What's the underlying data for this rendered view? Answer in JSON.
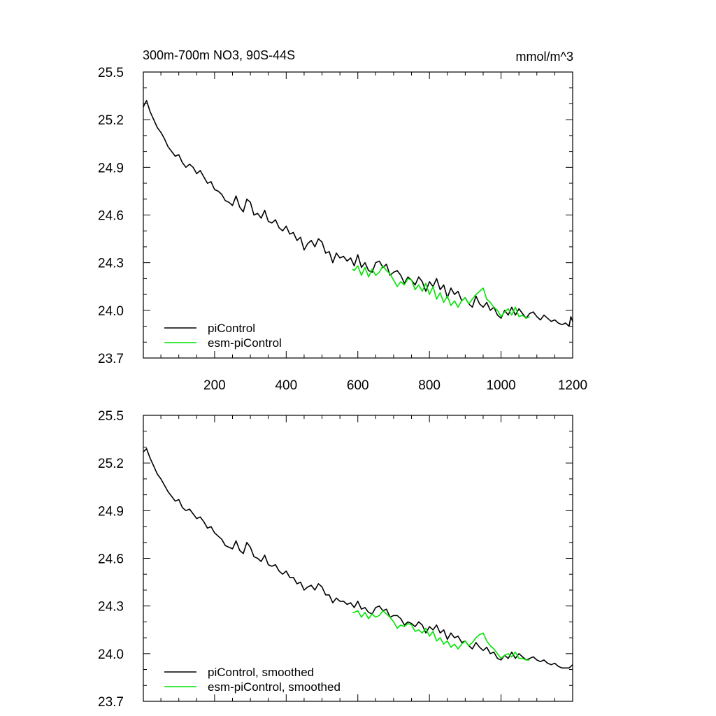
{
  "colors": {
    "picontrol": "#000000",
    "esm_picontrol": "#00e400",
    "axis": "#000000"
  },
  "chart_data": [
    {
      "type": "line",
      "title_left": "300m-700m NO3, 90S-44S",
      "title_right": "mmol/m^3",
      "xlabel": "",
      "ylabel": "",
      "xlim": [
        1,
        1200
      ],
      "ylim": [
        23.7,
        25.5
      ],
      "xticks": [
        200,
        400,
        600,
        800,
        1000,
        1200
      ],
      "xtick_labels": [
        "200",
        "400",
        "600",
        "800",
        "1000",
        "1200"
      ],
      "yticks": [
        23.7,
        24.0,
        24.3,
        24.6,
        24.9,
        25.2,
        25.5
      ],
      "ytick_labels": [
        "23.7",
        "24.0",
        "24.3",
        "24.6",
        "24.9",
        "25.2",
        "25.5"
      ],
      "legend_position": "bottom-left",
      "series": [
        {
          "name": "piControl",
          "color_key": "picontrol",
          "x": [
            1,
            5,
            10,
            20,
            30,
            40,
            50,
            60,
            70,
            80,
            90,
            100,
            110,
            120,
            130,
            140,
            150,
            160,
            170,
            180,
            190,
            200,
            210,
            220,
            230,
            240,
            250,
            260,
            270,
            280,
            290,
            300,
            310,
            320,
            330,
            340,
            350,
            360,
            370,
            380,
            390,
            400,
            410,
            420,
            430,
            440,
            450,
            460,
            470,
            480,
            490,
            500,
            510,
            520,
            530,
            540,
            550,
            560,
            570,
            580,
            590,
            600,
            610,
            620,
            630,
            640,
            650,
            660,
            670,
            680,
            690,
            700,
            710,
            720,
            730,
            740,
            750,
            760,
            770,
            780,
            790,
            800,
            810,
            820,
            830,
            840,
            850,
            860,
            870,
            880,
            890,
            900,
            910,
            920,
            930,
            940,
            950,
            960,
            970,
            980,
            990,
            1000,
            1010,
            1020,
            1030,
            1040,
            1050,
            1060,
            1070,
            1080,
            1090,
            1100,
            1110,
            1120,
            1130,
            1140,
            1150,
            1160,
            1170,
            1180,
            1190,
            1195,
            1200
          ],
          "y": [
            25.28,
            25.3,
            25.32,
            25.25,
            25.2,
            25.15,
            25.12,
            25.08,
            25.03,
            25.0,
            24.97,
            24.98,
            24.93,
            24.9,
            24.92,
            24.9,
            24.86,
            24.88,
            24.84,
            24.8,
            24.81,
            24.76,
            24.75,
            24.73,
            24.69,
            24.68,
            24.66,
            24.72,
            24.65,
            24.62,
            24.7,
            24.68,
            24.6,
            24.61,
            24.58,
            24.63,
            24.56,
            24.55,
            24.57,
            24.52,
            24.5,
            24.53,
            24.48,
            24.49,
            24.44,
            24.46,
            24.38,
            24.42,
            24.44,
            24.4,
            24.45,
            24.43,
            24.36,
            24.37,
            24.3,
            24.36,
            24.33,
            24.34,
            24.31,
            24.33,
            24.28,
            24.35,
            24.27,
            24.3,
            24.25,
            24.24,
            24.3,
            24.31,
            24.27,
            24.29,
            24.22,
            24.24,
            24.25,
            24.22,
            24.17,
            24.21,
            24.19,
            24.16,
            24.21,
            24.18,
            24.12,
            24.18,
            24.15,
            24.2,
            24.13,
            24.16,
            24.08,
            24.14,
            24.1,
            24.12,
            24.06,
            24.08,
            24.04,
            24.02,
            24.09,
            24.04,
            24.02,
            24.05,
            24.0,
            24.02,
            23.97,
            23.95,
            24.0,
            23.97,
            24.02,
            23.97,
            24.01,
            23.98,
            23.95,
            23.98,
            23.99,
            23.96,
            23.94,
            23.97,
            23.95,
            23.93,
            23.94,
            23.92,
            23.91,
            23.92,
            23.9,
            23.96,
            23.93
          ]
        },
        {
          "name": "esm-piControl",
          "color_key": "esm_picontrol",
          "x": [
            585,
            590,
            600,
            610,
            620,
            630,
            640,
            650,
            660,
            670,
            680,
            690,
            700,
            710,
            720,
            730,
            740,
            750,
            760,
            770,
            780,
            790,
            800,
            810,
            820,
            830,
            840,
            850,
            860,
            870,
            880,
            890,
            900,
            910,
            920,
            930,
            940,
            950,
            960,
            970,
            980,
            990,
            1000,
            1010,
            1020,
            1030,
            1040,
            1050,
            1060,
            1070,
            1080
          ],
          "y": [
            24.26,
            24.25,
            24.28,
            24.22,
            24.27,
            24.21,
            24.26,
            24.22,
            24.24,
            24.28,
            24.25,
            24.23,
            24.19,
            24.15,
            24.18,
            24.16,
            24.2,
            24.19,
            24.13,
            24.16,
            24.12,
            24.17,
            24.1,
            24.15,
            24.07,
            24.11,
            24.05,
            24.09,
            24.03,
            24.06,
            24.02,
            24.06,
            24.08,
            24.04,
            24.07,
            24.1,
            24.12,
            24.14,
            24.07,
            24.05,
            24.02,
            24.0,
            23.96,
            23.99,
            24.01,
            23.97,
            24.02,
            23.96,
            23.97,
            23.95,
            23.96
          ]
        }
      ],
      "legend": [
        "piControl",
        "esm-piControl"
      ]
    },
    {
      "type": "line",
      "title_left": "",
      "title_right": "",
      "xlabel": "",
      "ylabel": "",
      "xlim": [
        1,
        1200
      ],
      "ylim": [
        23.7,
        25.5
      ],
      "xticks": [
        200,
        400,
        600,
        800,
        1000,
        1200
      ],
      "xtick_labels": [],
      "yticks": [
        23.7,
        24.0,
        24.3,
        24.6,
        24.9,
        25.2,
        25.5
      ],
      "ytick_labels": [
        "23.7",
        "24.0",
        "24.3",
        "24.6",
        "24.9",
        "25.2",
        "25.5"
      ],
      "legend_position": "bottom-left",
      "series": [
        {
          "name": "piControl, smoothed",
          "color_key": "picontrol",
          "x": [
            1,
            10,
            20,
            30,
            40,
            50,
            60,
            70,
            80,
            90,
            100,
            110,
            120,
            130,
            140,
            150,
            160,
            170,
            180,
            190,
            200,
            210,
            220,
            230,
            240,
            250,
            260,
            270,
            280,
            290,
            300,
            310,
            320,
            330,
            340,
            350,
            360,
            370,
            380,
            390,
            400,
            410,
            420,
            430,
            440,
            450,
            460,
            470,
            480,
            490,
            500,
            510,
            520,
            530,
            540,
            550,
            560,
            570,
            580,
            590,
            600,
            610,
            620,
            630,
            640,
            650,
            660,
            670,
            680,
            690,
            700,
            710,
            720,
            730,
            740,
            750,
            760,
            770,
            780,
            790,
            800,
            810,
            820,
            830,
            840,
            850,
            860,
            870,
            880,
            890,
            900,
            910,
            920,
            930,
            940,
            950,
            960,
            970,
            980,
            990,
            1000,
            1010,
            1020,
            1030,
            1040,
            1050,
            1060,
            1070,
            1080,
            1090,
            1100,
            1110,
            1120,
            1130,
            1140,
            1150,
            1160,
            1170,
            1180,
            1190,
            1200
          ],
          "y": [
            25.27,
            25.29,
            25.23,
            25.18,
            25.13,
            25.1,
            25.06,
            25.02,
            24.99,
            24.96,
            24.97,
            24.92,
            24.9,
            24.91,
            24.88,
            24.85,
            24.86,
            24.83,
            24.79,
            24.8,
            24.76,
            24.74,
            24.72,
            24.68,
            24.67,
            24.66,
            24.71,
            24.65,
            24.63,
            24.7,
            24.67,
            24.61,
            24.6,
            24.58,
            24.62,
            24.56,
            24.55,
            24.56,
            24.52,
            24.5,
            24.52,
            24.48,
            24.48,
            24.44,
            24.45,
            24.4,
            24.42,
            24.43,
            24.4,
            24.44,
            24.42,
            24.37,
            24.37,
            24.32,
            24.35,
            24.33,
            24.33,
            24.31,
            24.32,
            24.29,
            24.33,
            24.28,
            24.29,
            24.26,
            24.25,
            24.29,
            24.3,
            24.27,
            24.28,
            24.23,
            24.24,
            24.24,
            24.22,
            24.18,
            24.2,
            24.19,
            24.17,
            24.2,
            24.18,
            24.13,
            24.17,
            24.15,
            24.18,
            24.13,
            24.15,
            24.09,
            24.13,
            24.1,
            24.11,
            24.07,
            24.08,
            24.05,
            24.03,
            24.07,
            24.04,
            24.02,
            24.04,
            24.0,
            24.01,
            23.97,
            23.96,
            23.99,
            23.97,
            24.01,
            23.97,
            24.0,
            23.98,
            23.96,
            23.97,
            23.98,
            23.96,
            23.95,
            23.96,
            23.94,
            23.93,
            23.94,
            23.92,
            23.91,
            23.91,
            23.91,
            23.93
          ]
        },
        {
          "name": "esm-piControl, smoothed",
          "color_key": "esm_picontrol",
          "x": [
            585,
            590,
            600,
            610,
            620,
            630,
            640,
            650,
            660,
            670,
            680,
            690,
            700,
            710,
            720,
            730,
            740,
            750,
            760,
            770,
            780,
            790,
            800,
            810,
            820,
            830,
            840,
            850,
            860,
            870,
            880,
            890,
            900,
            910,
            920,
            930,
            940,
            950,
            960,
            970,
            980,
            990,
            1000,
            1010,
            1020,
            1030,
            1040,
            1050,
            1060,
            1070,
            1080
          ],
          "y": [
            24.26,
            24.26,
            24.27,
            24.23,
            24.26,
            24.22,
            24.25,
            24.23,
            24.24,
            24.27,
            24.25,
            24.23,
            24.2,
            24.16,
            24.18,
            24.17,
            24.19,
            24.18,
            24.14,
            24.15,
            24.13,
            24.16,
            24.11,
            24.14,
            24.08,
            24.1,
            24.06,
            24.08,
            24.04,
            24.06,
            24.03,
            24.06,
            24.08,
            24.05,
            24.07,
            24.1,
            24.12,
            24.13,
            24.08,
            24.05,
            24.03,
            24.0,
            23.97,
            23.99,
            24.0,
            23.98,
            24.01,
            23.97,
            23.97,
            23.96,
            23.96
          ]
        }
      ],
      "legend": [
        "piControl, smoothed",
        "esm-piControl, smoothed"
      ]
    }
  ]
}
